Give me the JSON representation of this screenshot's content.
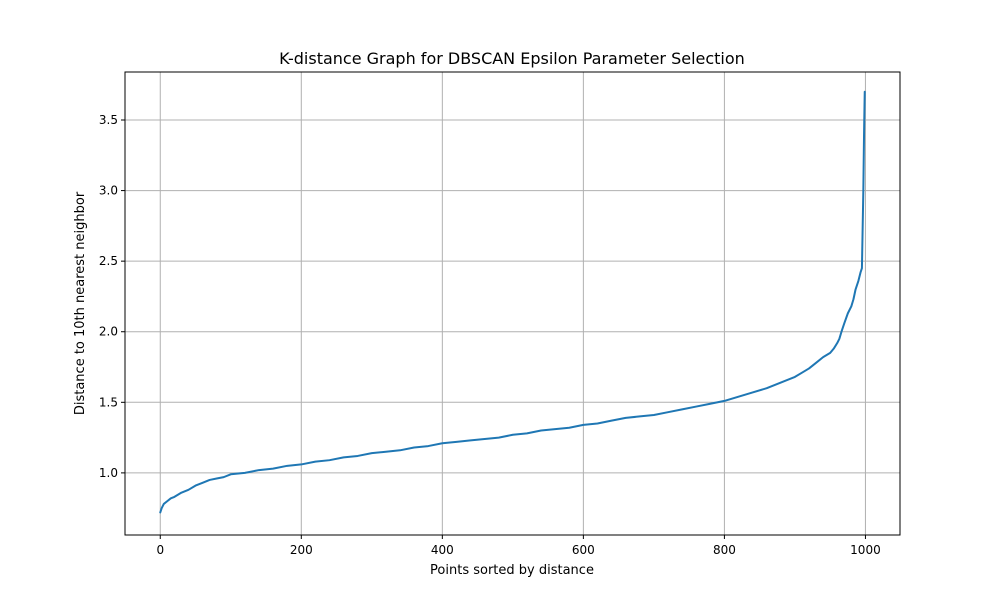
{
  "chart_data": {
    "type": "line",
    "title": "K-distance Graph for DBSCAN Epsilon Parameter Selection",
    "xlabel": "Points sorted by distance",
    "ylabel": "Distance to 10th nearest neighbor",
    "xlim": [
      -50,
      1049
    ],
    "ylim": [
      0.56,
      3.84
    ],
    "xticks": [
      0,
      200,
      400,
      600,
      800,
      1000
    ],
    "yticks": [
      1.0,
      1.5,
      2.0,
      2.5,
      3.0,
      3.5
    ],
    "xtick_labels": [
      "0",
      "200",
      "400",
      "600",
      "800",
      "1000"
    ],
    "ytick_labels": [
      "1.0",
      "1.5",
      "2.0",
      "2.5",
      "3.0",
      "3.5"
    ],
    "grid": true,
    "line_color": "#1f77b4",
    "series": [
      {
        "x": [
          0,
          2,
          5,
          10,
          15,
          20,
          30,
          40,
          50,
          60,
          70,
          80,
          90,
          100,
          120,
          140,
          160,
          180,
          200,
          220,
          240,
          260,
          280,
          300,
          320,
          340,
          360,
          380,
          400,
          420,
          440,
          460,
          480,
          500,
          520,
          540,
          560,
          580,
          600,
          620,
          640,
          660,
          680,
          700,
          720,
          740,
          760,
          780,
          800,
          820,
          840,
          860,
          880,
          900,
          910,
          920,
          930,
          940,
          950,
          955,
          960,
          963,
          966,
          970,
          975,
          980,
          983,
          986,
          990,
          993,
          995,
          997,
          998,
          999
        ],
        "y": [
          0.72,
          0.75,
          0.78,
          0.8,
          0.82,
          0.83,
          0.86,
          0.88,
          0.91,
          0.93,
          0.95,
          0.96,
          0.97,
          0.99,
          1.0,
          1.02,
          1.03,
          1.05,
          1.06,
          1.08,
          1.09,
          1.11,
          1.12,
          1.14,
          1.15,
          1.16,
          1.18,
          1.19,
          1.21,
          1.22,
          1.23,
          1.24,
          1.25,
          1.27,
          1.28,
          1.3,
          1.31,
          1.32,
          1.34,
          1.35,
          1.37,
          1.39,
          1.4,
          1.41,
          1.43,
          1.45,
          1.47,
          1.49,
          1.51,
          1.54,
          1.57,
          1.6,
          1.64,
          1.68,
          1.71,
          1.74,
          1.78,
          1.82,
          1.85,
          1.88,
          1.92,
          1.95,
          2.0,
          2.06,
          2.13,
          2.18,
          2.23,
          2.3,
          2.36,
          2.42,
          2.45,
          3.0,
          3.4,
          3.7
        ]
      }
    ]
  }
}
